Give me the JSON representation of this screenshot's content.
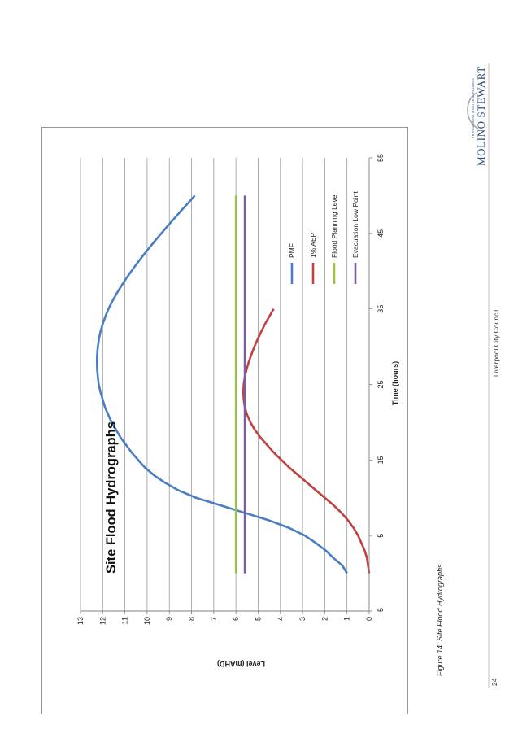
{
  "page": {
    "page_number": "24",
    "footer_org": "Liverpool City Council",
    "caption": "Figure 14: Site Flood Hydrographs"
  },
  "logo": {
    "name": "MOLINO STEWART",
    "tagline": "ENVIRONMENT & NATURAL HAZARDS"
  },
  "colors": {
    "pmf": "#4a7ec4",
    "aep1": "#c0413e",
    "flood_planning": "#9bc34a",
    "evacuation": "#7b5ca6",
    "gridline": "#999999",
    "logo": "#2a4f7c"
  },
  "chart_data": {
    "type": "line",
    "title": "Site Flood Hydrographs",
    "xlabel": "Time (hours)",
    "ylabel": "Level (mAHD)",
    "xlim": [
      -5,
      55
    ],
    "ylim": [
      0,
      13
    ],
    "xticks": [
      -5,
      5,
      15,
      25,
      35,
      45,
      55
    ],
    "yticks": [
      0,
      1,
      2,
      3,
      4,
      5,
      6,
      7,
      8,
      9,
      10,
      11,
      12,
      13
    ],
    "grid": "horizontal",
    "legend_position": "lower-right",
    "series": [
      {
        "name": "PMF",
        "color": "#4a7ec4",
        "x": [
          0,
          0.5,
          1,
          1.5,
          2,
          3,
          4,
          5,
          6,
          7,
          8,
          9,
          10,
          11,
          12,
          13,
          14,
          15,
          16,
          17,
          18,
          19,
          20,
          21,
          22,
          23,
          24,
          25,
          26,
          27,
          28,
          29,
          30,
          31,
          32,
          33,
          34,
          35,
          36,
          37,
          38,
          39,
          40,
          41,
          42,
          43,
          44,
          45,
          46,
          47,
          48,
          49,
          50
        ],
        "y": [
          1.0,
          1.1,
          1.2,
          1.4,
          1.6,
          1.95,
          2.4,
          2.9,
          3.6,
          4.5,
          5.6,
          6.7,
          7.8,
          8.6,
          9.2,
          9.7,
          10.1,
          10.4,
          10.7,
          10.95,
          11.2,
          11.4,
          11.6,
          11.75,
          11.9,
          12.0,
          12.1,
          12.18,
          12.22,
          12.25,
          12.26,
          12.25,
          12.22,
          12.17,
          12.1,
          12.0,
          11.88,
          11.74,
          11.57,
          11.38,
          11.17,
          10.95,
          10.71,
          10.46,
          10.2,
          9.93,
          9.65,
          9.36,
          9.07,
          8.77,
          8.47,
          8.16,
          7.85
        ]
      },
      {
        "name": "1% AEP",
        "color": "#c0413e",
        "x": [
          0,
          1,
          2,
          3,
          4,
          5,
          6,
          7,
          8,
          9,
          10,
          11,
          12,
          13,
          14,
          15,
          16,
          17,
          18,
          19,
          20,
          21,
          22,
          23,
          24,
          25,
          26,
          27,
          28,
          29,
          30,
          31,
          32,
          33,
          34,
          35
        ],
        "y": [
          0.0,
          0.05,
          0.1,
          0.2,
          0.35,
          0.5,
          0.7,
          0.95,
          1.25,
          1.6,
          2.0,
          2.4,
          2.8,
          3.2,
          3.6,
          3.95,
          4.3,
          4.6,
          4.9,
          5.15,
          5.35,
          5.5,
          5.6,
          5.65,
          5.67,
          5.65,
          5.6,
          5.52,
          5.42,
          5.3,
          5.17,
          5.02,
          4.86,
          4.69,
          4.5,
          4.3
        ]
      },
      {
        "name": "Flood Planning Level",
        "color": "#9bc34a",
        "x": [
          0,
          50
        ],
        "y": [
          6.0,
          6.0
        ]
      },
      {
        "name": "Evacuation Low Point",
        "color": "#7b5ca6",
        "x": [
          0,
          50
        ],
        "y": [
          5.6,
          5.6
        ]
      }
    ]
  }
}
